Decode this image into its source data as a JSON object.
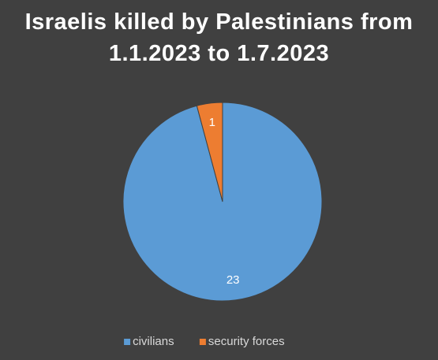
{
  "chart_data": {
    "type": "pie",
    "title": "Israelis killed by Palestinians from\n1.1.2023 to 1.7.2023",
    "categories": [
      "civilians",
      "security forces"
    ],
    "values": [
      23,
      1
    ],
    "colors": [
      "#5b9bd5",
      "#ed7d31"
    ],
    "legend": "bottom"
  }
}
